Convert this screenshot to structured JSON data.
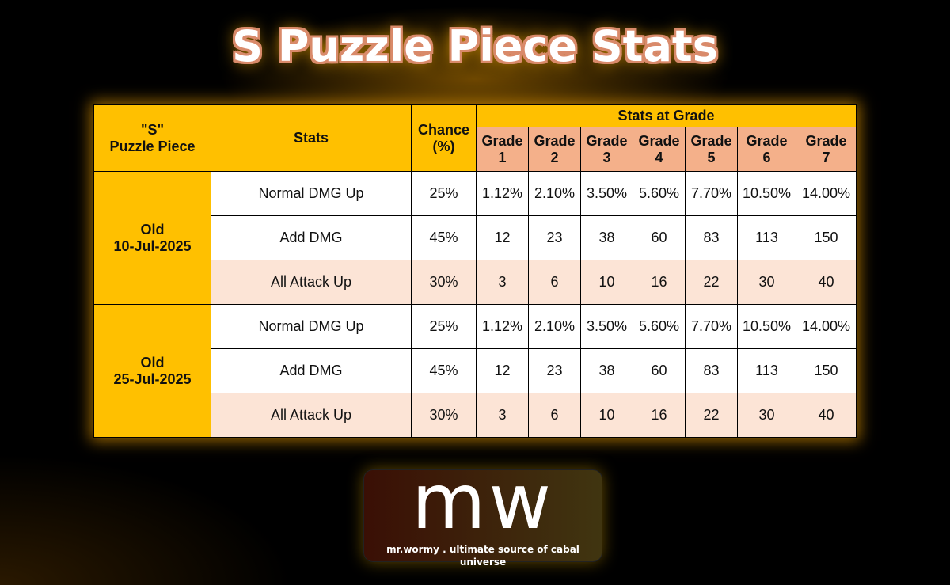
{
  "title": "S Puzzle Piece Stats",
  "header": {
    "piece": "\"S\"",
    "piece2": "Puzzle Piece",
    "stats": "Stats",
    "chance": "Chance",
    "chance2": "(%)",
    "grade_group": "Stats at Grade",
    "grades": [
      [
        "Grade",
        "1"
      ],
      [
        "Grade",
        "2"
      ],
      [
        "Grade",
        "3"
      ],
      [
        "Grade",
        "4"
      ],
      [
        "Grade",
        "5"
      ],
      [
        "Grade",
        "6"
      ],
      [
        "Grade",
        "7"
      ]
    ]
  },
  "groups": [
    {
      "label": "Old",
      "date": "10-Jul-2025",
      "rows": [
        {
          "stat": "Normal DMG Up",
          "chance": "25%",
          "values": [
            "1.12%",
            "2.10%",
            "3.50%",
            "5.60%",
            "7.70%",
            "10.50%",
            "14.00%"
          ]
        },
        {
          "stat": "Add DMG",
          "chance": "45%",
          "values": [
            "12",
            "23",
            "38",
            "60",
            "83",
            "113",
            "150"
          ]
        },
        {
          "stat": "All Attack Up",
          "chance": "30%",
          "values": [
            "3",
            "6",
            "10",
            "16",
            "22",
            "30",
            "40"
          ]
        }
      ]
    },
    {
      "label": "Old",
      "date": "25-Jul-2025",
      "rows": [
        {
          "stat": "Normal DMG Up",
          "chance": "25%",
          "values": [
            "1.12%",
            "2.10%",
            "3.50%",
            "5.60%",
            "7.70%",
            "10.50%",
            "14.00%"
          ]
        },
        {
          "stat": "Add DMG",
          "chance": "45%",
          "values": [
            "12",
            "23",
            "38",
            "60",
            "83",
            "113",
            "150"
          ]
        },
        {
          "stat": "All Attack Up",
          "chance": "30%",
          "values": [
            "3",
            "6",
            "10",
            "16",
            "22",
            "30",
            "40"
          ]
        }
      ]
    }
  ],
  "logo": {
    "mark": "mw",
    "tagline": "mr.wormy . ultimate source of cabal universe"
  }
}
